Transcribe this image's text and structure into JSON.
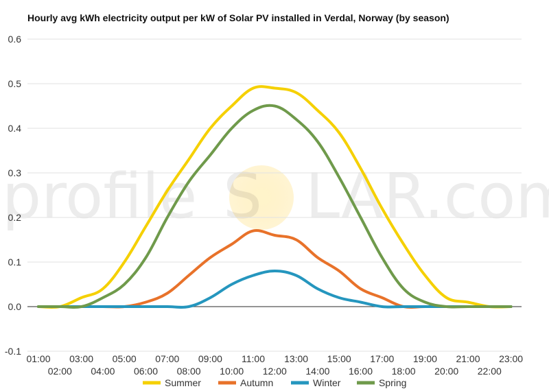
{
  "chart_data": {
    "type": "line",
    "title": "Hourly avg kWh electricity output per kW of Solar PV installed in Verdal, Norway (by season)",
    "xlabel": "",
    "ylabel": "",
    "ylim": [
      -0.1,
      0.6
    ],
    "yticks": [
      "-0.1",
      "0.0",
      "0.1",
      "0.2",
      "0.3",
      "0.4",
      "0.5",
      "0.6"
    ],
    "grid": true,
    "legend_position": "bottom",
    "categories": [
      "01:00",
      "02:00",
      "03:00",
      "04:00",
      "05:00",
      "06:00",
      "07:00",
      "08:00",
      "09:00",
      "10:00",
      "11:00",
      "12:00",
      "13:00",
      "14:00",
      "15:00",
      "16:00",
      "17:00",
      "18:00",
      "19:00",
      "20:00",
      "21:00",
      "22:00",
      "23:00"
    ],
    "series": [
      {
        "name": "Summer",
        "color": "#f5d000",
        "values": [
          0,
          0,
          0.02,
          0.04,
          0.1,
          0.18,
          0.26,
          0.33,
          0.4,
          0.45,
          0.49,
          0.49,
          0.48,
          0.44,
          0.39,
          0.31,
          0.22,
          0.14,
          0.07,
          0.02,
          0.01,
          0,
          0
        ]
      },
      {
        "name": "Autumn",
        "color": "#e8722a",
        "values": [
          0,
          0,
          0,
          0,
          0,
          0.01,
          0.03,
          0.07,
          0.11,
          0.14,
          0.17,
          0.16,
          0.15,
          0.11,
          0.08,
          0.04,
          0.02,
          0,
          0,
          0,
          0,
          0,
          0
        ]
      },
      {
        "name": "Winter",
        "color": "#2596be",
        "values": [
          0,
          0,
          0,
          0,
          0,
          0,
          0,
          0,
          0.02,
          0.05,
          0.07,
          0.08,
          0.07,
          0.04,
          0.02,
          0.01,
          0,
          0,
          0,
          0,
          0,
          0,
          0
        ]
      },
      {
        "name": "Spring",
        "color": "#6f9a4b",
        "values": [
          0,
          0,
          0,
          0.02,
          0.05,
          0.11,
          0.2,
          0.28,
          0.34,
          0.4,
          0.44,
          0.45,
          0.42,
          0.37,
          0.29,
          0.2,
          0.11,
          0.04,
          0.01,
          0,
          0,
          0,
          0
        ]
      }
    ]
  },
  "watermark": {
    "text_left": "profile",
    "text_s": "S",
    "text_right": "LAR.com"
  }
}
